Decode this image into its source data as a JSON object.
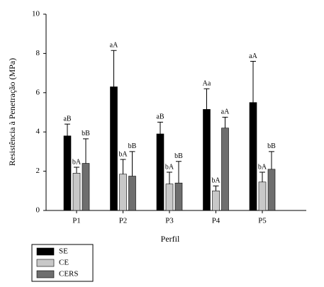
{
  "chart_data": {
    "type": "bar",
    "y_label": "Resistência à Penetração (MPa)",
    "x_label": "Perfil",
    "categories": [
      "P1",
      "P2",
      "P3",
      "P4",
      "P5"
    ],
    "series": [
      {
        "name": "SE",
        "color": "#000000",
        "values": [
          3.8,
          6.3,
          3.9,
          5.15,
          5.5
        ],
        "errors": [
          0.6,
          1.85,
          0.6,
          1.05,
          2.1
        ],
        "letters": [
          "aB",
          "aA",
          "aB",
          "Aa",
          "aA"
        ]
      },
      {
        "name": "CE",
        "color": "#c8c8c8",
        "values": [
          1.9,
          1.85,
          1.35,
          1.0,
          1.45
        ],
        "errors": [
          0.3,
          0.75,
          0.6,
          0.25,
          0.5
        ],
        "letters": [
          "bA",
          "bA",
          "bA",
          "bA",
          "bA"
        ]
      },
      {
        "name": "CERS",
        "color": "#6e6e6e",
        "values": [
          2.4,
          1.75,
          1.4,
          4.2,
          2.1
        ],
        "errors": [
          1.25,
          1.25,
          1.1,
          0.55,
          0.9
        ],
        "letters": [
          "bB",
          "bB",
          "bB",
          "aA",
          "bB"
        ]
      }
    ],
    "ylim": [
      0,
      10
    ],
    "yticks": [
      0,
      2,
      4,
      6,
      8,
      10
    ],
    "legend": "bottom-left"
  }
}
